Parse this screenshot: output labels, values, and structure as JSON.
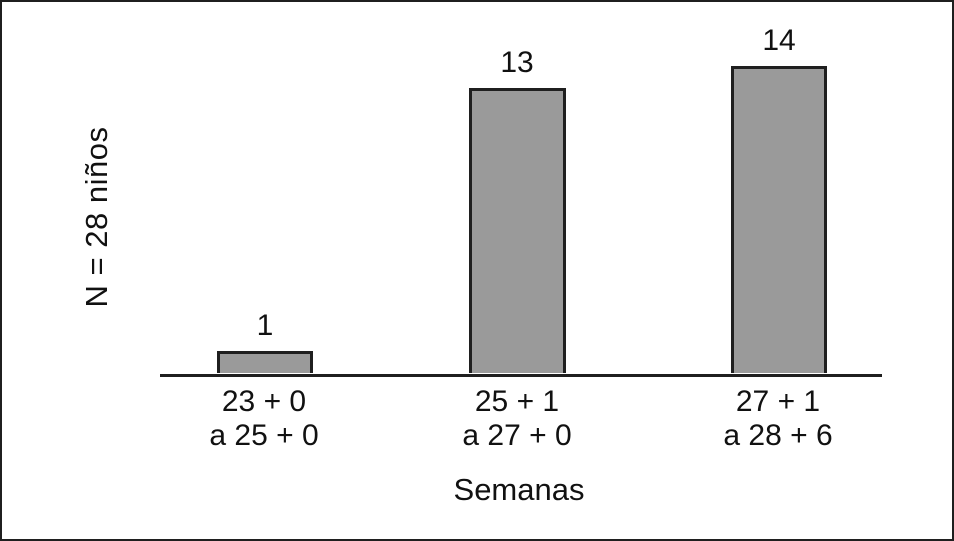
{
  "frame": {
    "background_color": "#ffffff",
    "border_color": "#1f1f1f"
  },
  "chart_data": {
    "type": "bar",
    "title": "",
    "xlabel": "Semanas",
    "ylabel": "N = 28 niños",
    "categories": [
      "23 + 0 a 25 + 0",
      "25 + 1 a 27 + 0",
      "27 + 1 a 28 + 6"
    ],
    "values": [
      1,
      13,
      14
    ],
    "ylim": [
      0,
      14
    ],
    "grid": false,
    "legend": "none",
    "bar_color": "#9a9a9a",
    "bar_border_color": "#1f1f1f",
    "bars": [
      {
        "category_line1": "23 + 0",
        "category_line2": "a 25 + 0",
        "value": 1
      },
      {
        "category_line1": "25 + 1",
        "category_line2": "a 27 + 0",
        "value": 13
      },
      {
        "category_line1": "27 + 1",
        "category_line2": "a 28 + 6",
        "value": 14
      }
    ]
  }
}
